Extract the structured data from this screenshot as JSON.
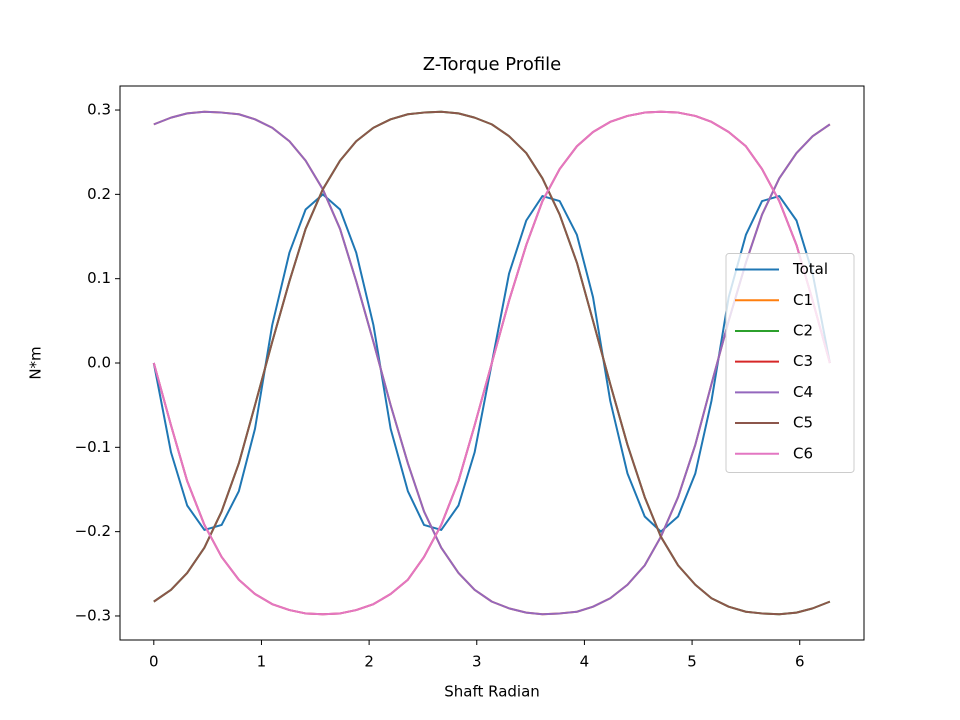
{
  "chart_data": {
    "type": "line",
    "title": "Z-Torque Profile",
    "x_label": "Shaft Radian",
    "y_label": "N*m",
    "x": [
      0,
      0.16,
      0.31,
      0.47,
      0.63,
      0.79,
      0.94,
      1.1,
      1.26,
      1.41,
      1.57,
      1.73,
      1.88,
      2.04,
      2.2,
      2.36,
      2.51,
      2.67,
      2.83,
      2.98,
      3.14,
      3.3,
      3.46,
      3.61,
      3.77,
      3.93,
      4.08,
      4.24,
      4.4,
      4.56,
      4.71,
      4.87,
      5.03,
      5.18,
      5.34,
      5.5,
      5.65,
      5.81,
      5.97,
      6.12,
      6.28
    ],
    "series": [
      {
        "name": "Total",
        "color": "#1f77b4",
        "values": [
          0,
          -0.106,
          -0.169,
          -0.198,
          -0.192,
          -0.152,
          -0.078,
          0.045,
          0.131,
          0.182,
          0.2,
          0.182,
          0.131,
          0.045,
          -0.078,
          -0.152,
          -0.192,
          -0.198,
          -0.169,
          -0.106,
          0,
          0.106,
          0.169,
          0.198,
          0.192,
          0.152,
          0.078,
          -0.045,
          -0.131,
          -0.182,
          -0.2,
          -0.182,
          -0.131,
          -0.045,
          0.078,
          0.152,
          0.192,
          0.198,
          0.169,
          0.106,
          0
        ]
      },
      {
        "name": "C1",
        "color": "#ff7f0e",
        "values": [
          0.283,
          0.291,
          0.296,
          0.298,
          0.297,
          0.295,
          0.289,
          0.279,
          0.263,
          0.24,
          0.206,
          0.159,
          0.097,
          0.025,
          -0.05,
          -0.119,
          -0.176,
          -0.219,
          -0.249,
          -0.269,
          -0.283,
          -0.291,
          -0.296,
          -0.298,
          -0.297,
          -0.295,
          -0.289,
          -0.279,
          -0.263,
          -0.24,
          -0.206,
          -0.159,
          -0.097,
          -0.025,
          0.05,
          0.119,
          0.176,
          0.219,
          0.249,
          0.269,
          0.283
        ]
      },
      {
        "name": "C2",
        "color": "#2ca02c",
        "values": [
          -0.283,
          -0.269,
          -0.249,
          -0.219,
          -0.176,
          -0.119,
          -0.05,
          0.025,
          0.097,
          0.159,
          0.206,
          0.24,
          0.263,
          0.279,
          0.289,
          0.295,
          0.297,
          0.298,
          0.296,
          0.291,
          0.283,
          0.269,
          0.249,
          0.219,
          0.176,
          0.119,
          0.05,
          -0.025,
          -0.097,
          -0.159,
          -0.206,
          -0.24,
          -0.263,
          -0.279,
          -0.289,
          -0.295,
          -0.297,
          -0.298,
          -0.296,
          -0.291,
          -0.283
        ]
      },
      {
        "name": "C3",
        "color": "#d62728",
        "values": [
          0,
          -0.074,
          -0.14,
          -0.192,
          -0.23,
          -0.257,
          -0.274,
          -0.286,
          -0.293,
          -0.297,
          -0.298,
          -0.297,
          -0.293,
          -0.286,
          -0.274,
          -0.257,
          -0.23,
          -0.192,
          -0.14,
          -0.074,
          0,
          0.074,
          0.14,
          0.192,
          0.23,
          0.257,
          0.274,
          0.286,
          0.293,
          0.297,
          0.298,
          0.297,
          0.293,
          0.286,
          0.274,
          0.257,
          0.23,
          0.192,
          0.14,
          0.074,
          0
        ]
      },
      {
        "name": "C4",
        "color": "#9467bd",
        "values": [
          0.283,
          0.291,
          0.296,
          0.298,
          0.297,
          0.295,
          0.289,
          0.279,
          0.263,
          0.24,
          0.206,
          0.159,
          0.097,
          0.025,
          -0.05,
          -0.119,
          -0.176,
          -0.219,
          -0.249,
          -0.269,
          -0.283,
          -0.291,
          -0.296,
          -0.298,
          -0.297,
          -0.295,
          -0.289,
          -0.279,
          -0.263,
          -0.24,
          -0.206,
          -0.159,
          -0.097,
          -0.025,
          0.05,
          0.119,
          0.176,
          0.219,
          0.249,
          0.269,
          0.283
        ]
      },
      {
        "name": "C5",
        "color": "#8c564b",
        "values": [
          -0.283,
          -0.269,
          -0.249,
          -0.219,
          -0.176,
          -0.119,
          -0.05,
          0.025,
          0.097,
          0.159,
          0.206,
          0.24,
          0.263,
          0.279,
          0.289,
          0.295,
          0.297,
          0.298,
          0.296,
          0.291,
          0.283,
          0.269,
          0.249,
          0.219,
          0.176,
          0.119,
          0.05,
          -0.025,
          -0.097,
          -0.159,
          -0.206,
          -0.24,
          -0.263,
          -0.279,
          -0.289,
          -0.295,
          -0.297,
          -0.298,
          -0.296,
          -0.291,
          -0.283
        ]
      },
      {
        "name": "C6",
        "color": "#e377c2",
        "values": [
          0,
          -0.074,
          -0.14,
          -0.192,
          -0.23,
          -0.257,
          -0.274,
          -0.286,
          -0.293,
          -0.297,
          -0.298,
          -0.297,
          -0.293,
          -0.286,
          -0.274,
          -0.257,
          -0.23,
          -0.192,
          -0.14,
          -0.074,
          0,
          0.074,
          0.14,
          0.192,
          0.23,
          0.257,
          0.274,
          0.286,
          0.293,
          0.297,
          0.298,
          0.297,
          0.293,
          0.286,
          0.274,
          0.257,
          0.23,
          0.192,
          0.14,
          0.074,
          0
        ]
      }
    ],
    "xlim": [
      -0.314,
      6.597
    ],
    "ylim": [
      -0.3285,
      0.3285
    ],
    "xticks": [
      0,
      1,
      2,
      3,
      4,
      5,
      6
    ],
    "yticks": [
      {
        "value": -0.3,
        "label": "−0.3"
      },
      {
        "value": -0.2,
        "label": "−0.2"
      },
      {
        "value": -0.1,
        "label": "−0.1"
      },
      {
        "value": 0,
        "label": "0.0"
      },
      0.1,
      0.2,
      0.3
    ],
    "grid": false,
    "legend": "center right"
  }
}
